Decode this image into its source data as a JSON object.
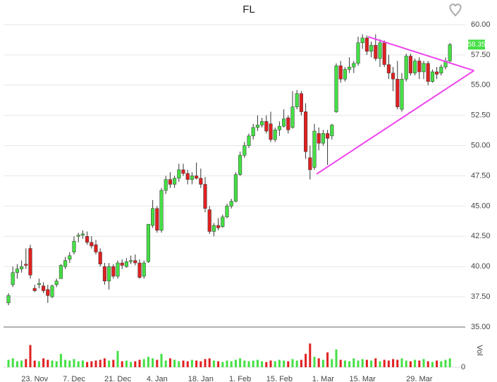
{
  "chart_data": {
    "type": "candlestick",
    "title": "FL",
    "categories": [
      null,
      null,
      null,
      null,
      null,
      null,
      "23. Nov",
      null,
      null,
      null,
      null,
      null,
      null,
      null,
      null,
      "7. Dec",
      null,
      null,
      null,
      null,
      null,
      null,
      null,
      null,
      null,
      "21. Dec",
      null,
      null,
      null,
      null,
      null,
      null,
      null,
      null,
      "4. Jan",
      null,
      null,
      null,
      null,
      null,
      null,
      null,
      null,
      null,
      "18. Jan",
      null,
      null,
      null,
      null,
      null,
      null,
      null,
      null,
      "1. Feb",
      null,
      null,
      null,
      null,
      null,
      null,
      null,
      null,
      "15. Feb",
      null,
      null,
      null,
      null,
      null,
      null,
      null,
      null,
      null,
      "1. Mar",
      null,
      null,
      null,
      null,
      null,
      null,
      null,
      null,
      "15. Mar",
      null,
      null,
      null,
      null,
      null,
      null,
      null,
      null,
      null,
      null,
      null,
      null,
      "29. Mar",
      null,
      null,
      null,
      null,
      null,
      null,
      null
    ],
    "ohlc": [
      [
        37.0,
        37.8,
        36.8,
        37.6
      ],
      [
        38.5,
        40,
        38.3,
        39.5
      ],
      [
        39.5,
        40.2,
        39,
        39.8
      ],
      [
        39.8,
        40.5,
        39.5,
        40.0
      ],
      [
        40.2,
        41.5,
        39.8,
        40.1
      ],
      [
        41.5,
        41.8,
        39,
        39.3
      ],
      [
        38.2,
        38.5,
        37.9,
        38.0
      ],
      [
        38.5,
        39,
        38.2,
        38.6
      ],
      [
        38.4,
        38.7,
        37.8,
        38.0
      ],
      [
        38.1,
        38.5,
        37,
        37.6
      ],
      [
        37.5,
        38.5,
        37.4,
        38.4
      ],
      [
        38.5,
        39,
        38.3,
        38.8
      ],
      [
        39,
        40.2,
        39,
        40.1
      ],
      [
        40,
        40.8,
        39.8,
        40.5
      ],
      [
        40.6,
        41.2,
        40.3,
        40.9
      ],
      [
        41.2,
        42.5,
        41,
        42.1
      ],
      [
        42.5,
        42.8,
        42,
        42.6
      ],
      [
        42.6,
        43,
        42.3,
        42.7
      ],
      [
        42.5,
        42.9,
        41.8,
        42.0
      ],
      [
        42,
        42.5,
        41.5,
        41.7
      ],
      [
        41.8,
        42.2,
        41,
        41.2
      ],
      [
        41.2,
        41.5,
        40,
        40.2
      ],
      [
        40,
        40.3,
        38.5,
        38.8
      ],
      [
        38.8,
        40.3,
        38.1,
        40.0
      ],
      [
        40,
        40.2,
        39,
        39.2
      ],
      [
        39.2,
        40.5,
        39,
        40.3
      ],
      [
        40.3,
        40.6,
        39.8,
        40.1
      ],
      [
        40,
        40.7,
        39.9,
        40.4
      ],
      [
        40.4,
        40.9,
        40.2,
        40.5
      ],
      [
        40.5,
        41,
        40.1,
        40.3
      ],
      [
        40.3,
        40.6,
        39,
        39.1
      ],
      [
        39.2,
        40.5,
        39,
        40.3
      ],
      [
        40.4,
        43.5,
        40.3,
        43.5
      ],
      [
        43.4,
        45.5,
        43.2,
        44.8
      ],
      [
        44.8,
        45,
        42.8,
        43
      ],
      [
        43,
        46.5,
        42.8,
        46.3
      ],
      [
        46.3,
        47.5,
        46,
        47.2
      ],
      [
        47.2,
        47.8,
        46.5,
        46.8
      ],
      [
        46.8,
        47.5,
        46.5,
        47.3
      ],
      [
        47.3,
        48.5,
        47,
        48
      ],
      [
        48,
        48.5,
        47.5,
        47.7
      ],
      [
        47.7,
        48,
        46.8,
        47.2
      ],
      [
        47.2,
        47.8,
        46.8,
        47.5
      ],
      [
        47.5,
        48.6,
        47.2,
        47.3
      ],
      [
        47.3,
        48.1,
        46.5,
        46.8
      ],
      [
        46.8,
        47.4,
        44.5,
        44.8
      ],
      [
        44.7,
        45,
        42.7,
        42.9
      ],
      [
        42.9,
        43.6,
        42.5,
        43.4
      ],
      [
        43.4,
        44,
        43,
        43.2
      ],
      [
        43.3,
        44.3,
        43.2,
        44.1
      ],
      [
        44.1,
        45.2,
        44,
        45
      ],
      [
        45,
        45.6,
        44.8,
        45.4
      ],
      [
        45.4,
        47.8,
        45.3,
        47.6
      ],
      [
        47.6,
        49.5,
        47.5,
        49.2
      ],
      [
        49.2,
        50.3,
        49,
        50
      ],
      [
        50,
        51,
        49.8,
        50.8
      ],
      [
        50.8,
        51.8,
        50.5,
        51.5
      ],
      [
        51.5,
        52.5,
        51.2,
        51.7
      ],
      [
        51.7,
        52.3,
        51.5,
        52
      ],
      [
        52,
        52.5,
        51,
        51.2
      ],
      [
        51.8,
        52.8,
        50.3,
        50.5
      ],
      [
        50.5,
        51.5,
        50.3,
        51.3
      ],
      [
        51.3,
        52,
        50.8,
        51.6
      ],
      [
        51.6,
        53,
        51.5,
        52.2
      ],
      [
        52.3,
        52.5,
        51,
        51.3
      ],
      [
        51.5,
        54.5,
        51.4,
        53.2
      ],
      [
        53.2,
        54.6,
        53,
        54.3
      ],
      [
        54.3,
        54.5,
        52.5,
        52.8
      ],
      [
        52.8,
        53.5,
        48.9,
        49.5
      ],
      [
        49,
        50,
        47.2,
        48.0
      ],
      [
        48.2,
        51.8,
        48,
        51.2
      ],
      [
        51,
        51.5,
        49.6,
        50.2
      ],
      [
        50.2,
        51.3,
        50,
        51
      ],
      [
        51,
        51.3,
        48.4,
        50.6
      ],
      [
        50.8,
        51.8,
        50.5,
        51.7
      ],
      [
        52.8,
        56.8,
        52.7,
        56.6
      ],
      [
        56.6,
        57,
        55.2,
        55.5
      ],
      [
        55.5,
        56.5,
        55.3,
        56.3
      ],
      [
        56.3,
        57.3,
        56,
        56.5
      ],
      [
        56.5,
        57,
        56,
        56.8
      ],
      [
        56.8,
        59,
        56.6,
        58.5
      ],
      [
        58.5,
        59.2,
        58,
        58.9
      ],
      [
        58.9,
        59.1,
        57.5,
        57.8
      ],
      [
        57.8,
        58.6,
        57.3,
        58.3
      ],
      [
        58.3,
        59.2,
        57,
        57.2
      ],
      [
        57.2,
        58.8,
        56.5,
        58.5
      ],
      [
        58.5,
        58.7,
        56.5,
        56.7
      ],
      [
        56.7,
        57.5,
        55.5,
        56.0
      ],
      [
        56,
        56.5,
        54.5,
        55.5
      ],
      [
        55.5,
        57,
        53,
        53.2
      ],
      [
        53,
        56,
        52.8,
        55.5
      ],
      [
        55.5,
        57.6,
        55.3,
        57.4
      ],
      [
        57.4,
        57.6,
        55.8,
        56
      ],
      [
        56,
        57.2,
        55.8,
        57
      ],
      [
        57,
        57.3,
        55.5,
        56.1
      ],
      [
        56.1,
        57,
        55.5,
        56.8
      ],
      [
        56.8,
        57,
        55,
        55.3
      ],
      [
        55.3,
        56.3,
        55.2,
        56.1
      ],
      [
        56.1,
        56.5,
        55.5,
        55.9
      ],
      [
        56,
        56.7,
        55.8,
        56.5
      ],
      [
        56.5,
        57.3,
        56.3,
        57
      ],
      [
        57,
        58.5,
        56.9,
        58.35
      ]
    ],
    "volume": [
      10,
      12,
      8,
      9,
      11,
      30,
      9,
      8,
      12,
      10,
      9,
      8,
      18,
      10,
      9,
      11,
      8,
      9,
      7,
      8,
      9,
      10,
      12,
      9,
      10,
      22,
      8,
      9,
      7,
      8,
      10,
      11,
      14,
      12,
      10,
      18,
      9,
      12,
      10,
      8,
      9,
      8,
      10,
      9,
      8,
      11,
      12,
      9,
      8,
      7,
      9,
      8,
      10,
      12,
      9,
      8,
      9,
      10,
      8,
      7,
      9,
      8,
      10,
      9,
      8,
      11,
      9,
      10,
      18,
      32,
      14,
      12,
      10,
      20,
      11,
      24,
      10,
      9,
      8,
      12,
      9,
      11,
      10,
      9,
      12,
      8,
      10,
      9,
      11,
      10,
      12,
      9,
      8,
      10,
      9,
      11,
      8,
      7,
      9,
      8,
      10,
      12
    ],
    "up_color": "#44e044",
    "down_color": "#e02020",
    "ylim": [
      35,
      60
    ],
    "yticks": [
      {
        "value": 35,
        "label": "35.00"
      },
      {
        "value": 37.5,
        "label": "37.50"
      },
      {
        "value": 40,
        "label": "40.00"
      },
      {
        "value": 42.5,
        "label": "42.50"
      },
      {
        "value": 45,
        "label": "45.00"
      },
      {
        "value": 47.5,
        "label": "47.50"
      },
      {
        "value": 50,
        "label": "50.00"
      },
      {
        "value": 52.5,
        "label": "52.50"
      },
      {
        "value": 55,
        "label": "55.00"
      },
      {
        "value": 57.5,
        "label": "57.50"
      },
      {
        "value": 60,
        "label": "60.00"
      }
    ],
    "volume_label": "Vol",
    "volume_lim": [
      0,
      40
    ],
    "volume_ticks": [
      0
    ],
    "last_price": 58.35,
    "trendlines": [
      {
        "x": [
          70.5,
          106.5
        ],
        "y": [
          47.65,
          56.2
        ]
      },
      {
        "x": [
          82.3,
          106.5
        ],
        "y": [
          59.0,
          56.2
        ]
      }
    ],
    "trendline_color": "#ee44ee",
    "grid": true
  }
}
